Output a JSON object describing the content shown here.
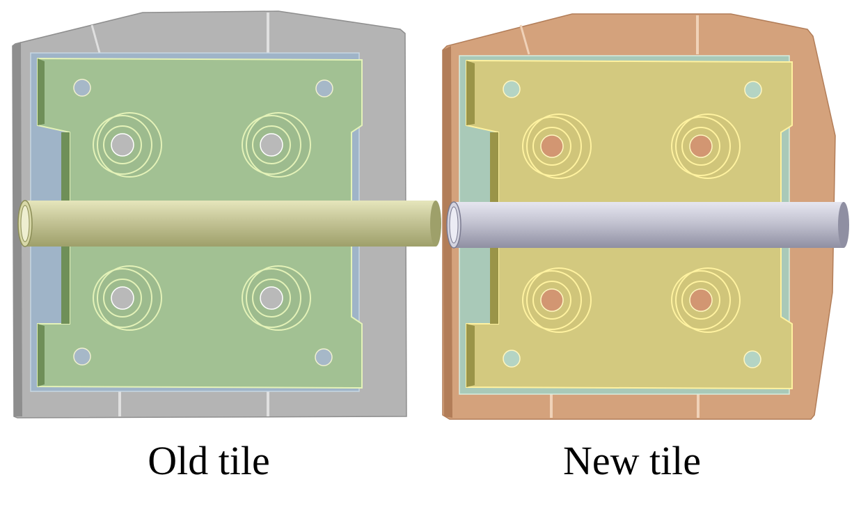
{
  "tiles": [
    {
      "caption": "Old tile",
      "colors": {
        "housing": "#b4b4b4",
        "housing_edge": "#8e8e8e",
        "back_plate": "#9fb4c8",
        "plate": "#a2c193",
        "plate_edge": "#e4f2b8",
        "plate_side": "#6f8f58",
        "holes": "#b9b9b9",
        "pipe": "#c4c496",
        "pipe_dark": "#9ea06a",
        "pipe_light": "#e6e6bc"
      }
    },
    {
      "caption": "New tile",
      "colors": {
        "housing": "#d4a27c",
        "housing_edge": "#b27d58",
        "back_plate": "#a9c9b8",
        "plate": "#d3c97f",
        "plate_edge": "#fff2a0",
        "plate_side": "#9a9448",
        "holes": "#d29672",
        "pipe": "#c3c3d1",
        "pipe_dark": "#8f8fa2",
        "pipe_light": "#e6e6f0"
      }
    }
  ]
}
